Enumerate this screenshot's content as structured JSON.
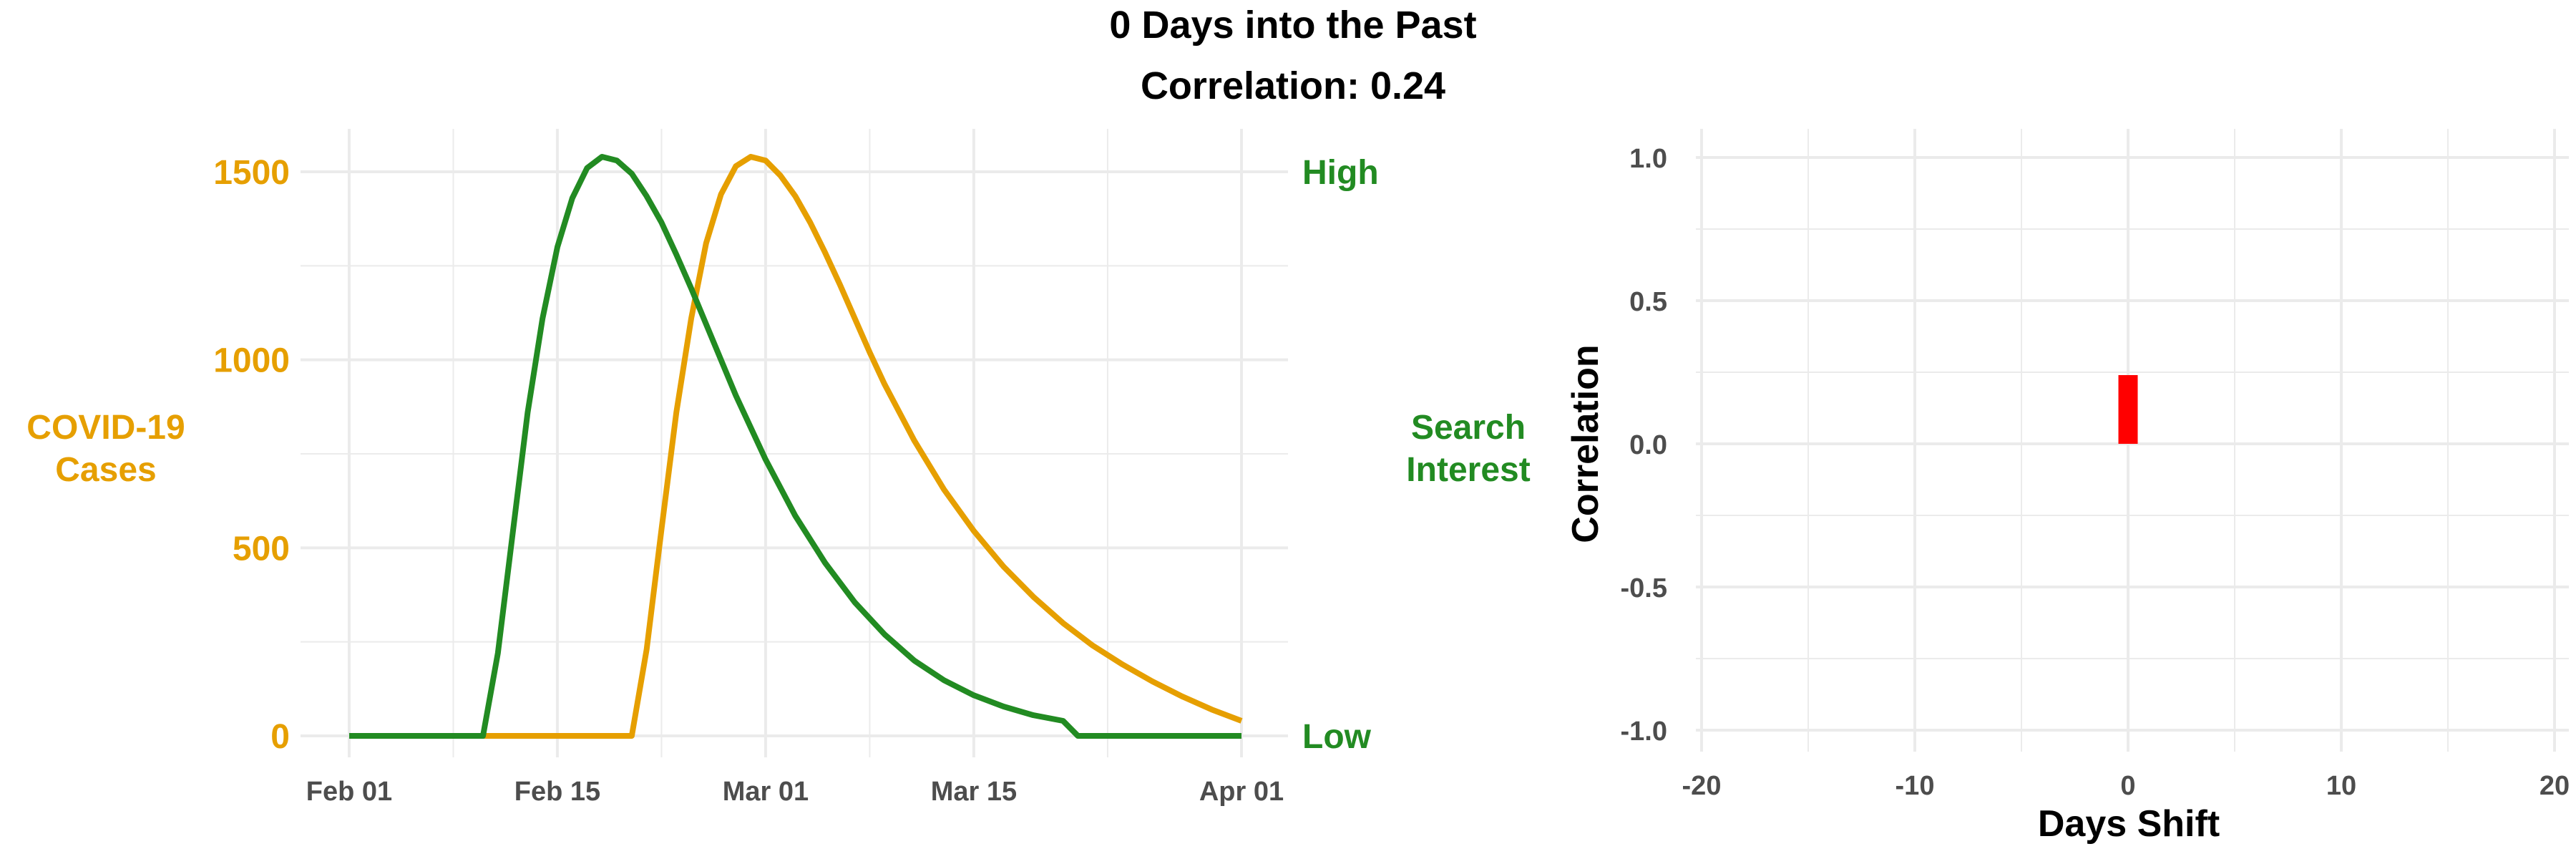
{
  "title_line1": "0 Days into the Past",
  "title_line2": "Correlation: 0.24",
  "colors": {
    "cases": "#E69F00",
    "search": "#228B22",
    "bar": "#FF0000",
    "grid": "#EBEBEB",
    "tick": "#4d4d4d"
  },
  "chart_data": [
    {
      "type": "line",
      "x_tick_labels": [
        "Feb 01",
        "Feb 15",
        "Mar 01",
        "Mar 15",
        "Apr 01"
      ],
      "x_tick_days": [
        0,
        14,
        28,
        42,
        60
      ],
      "xlim_days": [
        0,
        60
      ],
      "ylim": [
        0,
        1540
      ],
      "ylabel_line1": "COVID-19",
      "ylabel_line2": "Cases",
      "y_ticks": [
        0,
        500,
        1000,
        1500
      ],
      "y2label_line1": "Search",
      "y2label_line2": "Interest",
      "y2_tick_labels": [
        "Low",
        "High"
      ],
      "grid": true,
      "series": [
        {
          "key": "cases",
          "color": "#E69F00",
          "x_days": [
            0,
            10,
            19,
            20,
            21,
            22,
            23,
            24,
            25,
            26,
            27,
            28,
            29,
            30,
            31,
            32,
            33,
            34,
            35,
            36,
            38,
            40,
            42,
            44,
            46,
            48,
            50,
            52,
            54,
            56,
            58,
            60
          ],
          "values": [
            0,
            0,
            0,
            230,
            550,
            860,
            1110,
            1310,
            1440,
            1515,
            1540,
            1530,
            1490,
            1435,
            1365,
            1285,
            1200,
            1110,
            1020,
            935,
            785,
            655,
            545,
            450,
            370,
            300,
            240,
            190,
            145,
            105,
            70,
            40
          ]
        },
        {
          "key": "search",
          "color": "#228B22",
          "x_days": [
            0,
            9,
            10,
            11,
            12,
            13,
            14,
            15,
            16,
            17,
            18,
            19,
            20,
            21,
            22,
            23,
            24,
            26,
            28,
            30,
            32,
            34,
            36,
            38,
            40,
            42,
            44,
            46,
            48,
            49,
            50,
            55,
            60
          ],
          "values": [
            0,
            0,
            220,
            540,
            860,
            1110,
            1300,
            1430,
            1510,
            1540,
            1530,
            1495,
            1435,
            1365,
            1280,
            1190,
            1095,
            905,
            735,
            585,
            460,
            355,
            270,
            200,
            148,
            108,
            78,
            55,
            40,
            0,
            0,
            0,
            0
          ]
        }
      ]
    },
    {
      "type": "bar",
      "xlabel": "Days Shift",
      "ylabel": "Correlation",
      "x_ticks": [
        -20,
        -10,
        0,
        10,
        20
      ],
      "xlim": [
        -21,
        21
      ],
      "y_ticks": [
        -1.0,
        -0.5,
        0.0,
        0.5,
        1.0
      ],
      "y_tick_labels": [
        "-1.0",
        "-0.5",
        "0.0",
        "0.5",
        "1.0"
      ],
      "ylim": [
        -1.0,
        1.0
      ],
      "grid": true,
      "bars": [
        {
          "x": 0,
          "value": 0.24,
          "color": "#FF0000"
        }
      ]
    }
  ]
}
